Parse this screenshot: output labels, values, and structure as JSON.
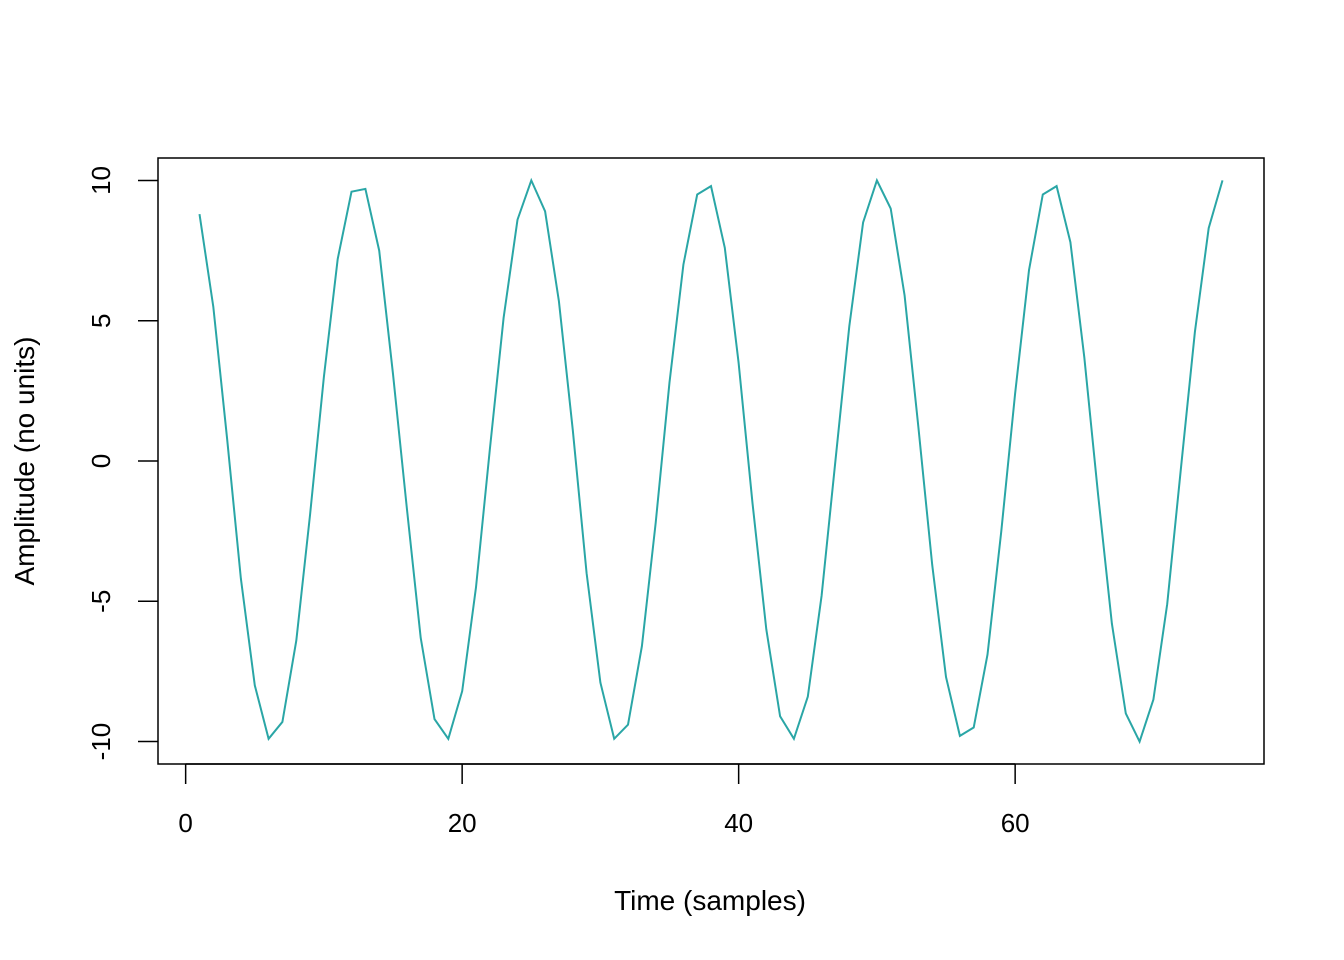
{
  "chart_data": {
    "type": "line",
    "title": "",
    "xlabel": "Time (samples)",
    "ylabel": "Amplitude (no units)",
    "xlim": [
      -2,
      78
    ],
    "ylim": [
      -10.8,
      10.8
    ],
    "x_ticks": [
      0,
      20,
      40,
      60
    ],
    "y_ticks": [
      -10,
      -5,
      0,
      5,
      10
    ],
    "x_tick_labels": [
      "0",
      "20",
      "40",
      "60"
    ],
    "y_tick_labels": [
      "-10",
      "-5",
      "0",
      "5",
      "10"
    ],
    "grid": false,
    "legend": "none",
    "line_color": "#2aa6a6",
    "series": [
      {
        "x": [
          1,
          2,
          3,
          4,
          5,
          6,
          7,
          8,
          9,
          10,
          11,
          12,
          13,
          14,
          15,
          16,
          17,
          18,
          19,
          20,
          21,
          22,
          23,
          24,
          25,
          26,
          27,
          28,
          29,
          30,
          31,
          32,
          33,
          34,
          35,
          36,
          37,
          38,
          39,
          40,
          41,
          42,
          43,
          44,
          45,
          46,
          47,
          48,
          49,
          50,
          51,
          52,
          53,
          54,
          55,
          56,
          57,
          58,
          59,
          60,
          61,
          62,
          63,
          64,
          65,
          66,
          67,
          68,
          69,
          70,
          71,
          72,
          73,
          74,
          75
        ],
        "values": [
          8.8,
          5.5,
          0.8,
          -4.2,
          -8.0,
          -9.9,
          -9.3,
          -6.4,
          -1.9,
          3.0,
          7.2,
          9.6,
          9.7,
          7.5,
          3.1,
          -1.7,
          -6.3,
          -9.2,
          -9.9,
          -8.2,
          -4.5,
          0.4,
          5.1,
          8.6,
          10.0,
          8.9,
          5.7,
          1.1,
          -4.0,
          -7.9,
          -9.9,
          -9.4,
          -6.6,
          -2.2,
          2.8,
          7.0,
          9.5,
          9.8,
          7.6,
          3.5,
          -1.5,
          -6.0,
          -9.1,
          -9.9,
          -8.4,
          -4.8,
          0.0,
          4.8,
          8.5,
          10.0,
          9.0,
          5.9,
          1.2,
          -3.7,
          -7.7,
          -9.8,
          -9.5,
          -6.9,
          -2.5,
          2.4,
          6.8,
          9.5,
          9.8,
          7.8,
          3.7,
          -1.2,
          -5.8,
          -9.0,
          -10.0,
          -8.5,
          -5.1,
          -0.2,
          4.6,
          8.3,
          10.0
        ]
      }
    ]
  }
}
